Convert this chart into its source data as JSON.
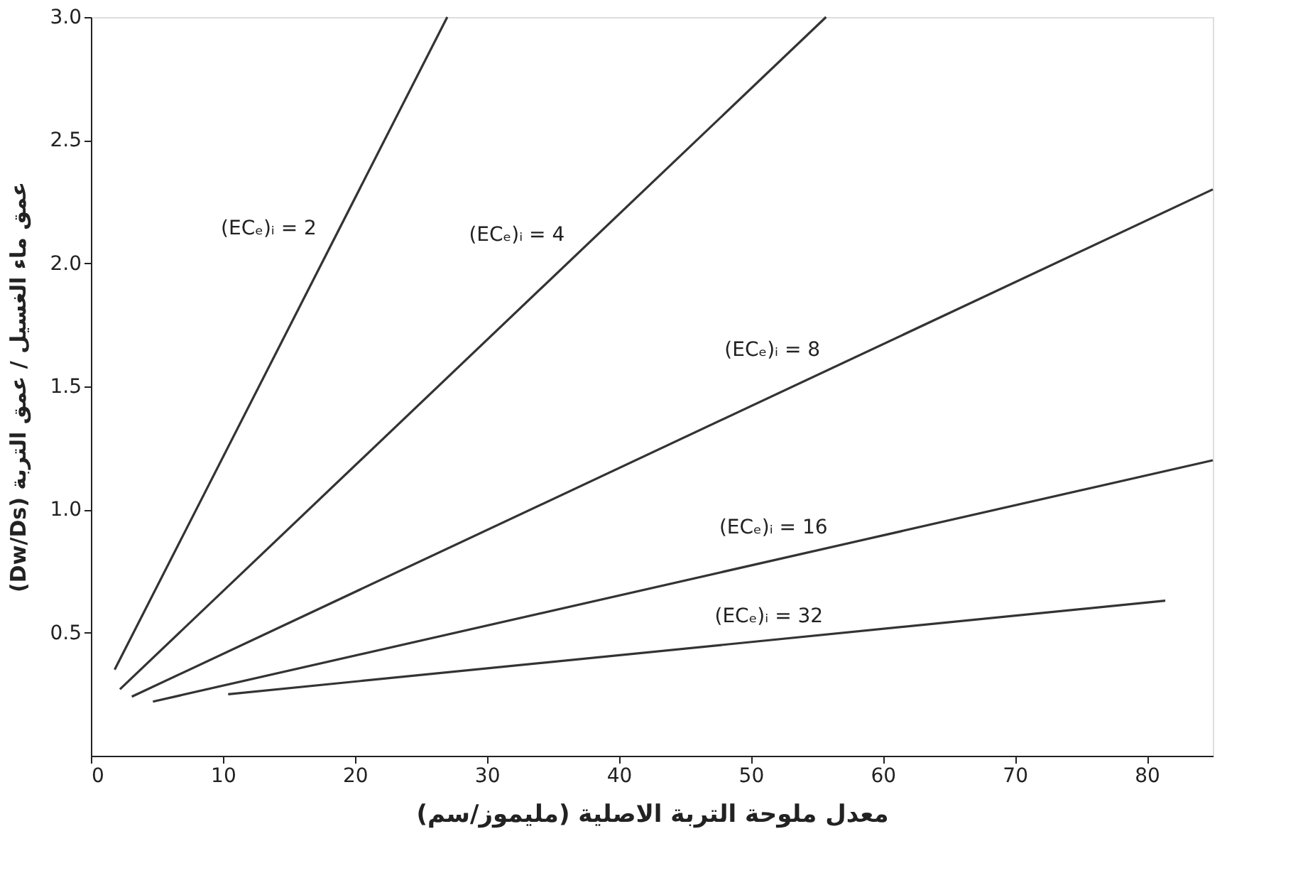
{
  "chart_data": {
    "type": "line",
    "xlabel": "معدل ملوحة التربة الاصلية (مليموز/سم)",
    "ylabel": "(Dw/Ds) عمق ماء الغسيل / عمق التربة",
    "xlim": [
      0,
      85
    ],
    "xticks": [
      0,
      10,
      20,
      30,
      40,
      50,
      60,
      70,
      80
    ],
    "ylim": [
      0,
      3.0
    ],
    "yticks": [
      0.5,
      {
        "value": 1.0,
        "label": "1.0"
      },
      1.5,
      {
        "value": 2.0,
        "label": "2.0"
      },
      2.5,
      {
        "value": 3.0,
        "label": "3.0"
      }
    ],
    "grid": false,
    "marker": "none",
    "line_style": "solid",
    "series": [
      {
        "name": "(ECₑ)ᵢ = 2",
        "color": "#333333",
        "x": [
          1.8,
          27
        ],
        "values": [
          0.35,
          3.0
        ]
      },
      {
        "name": "(ECₑ)ᵢ = 4",
        "color": "#333333",
        "x": [
          2.2,
          55.7
        ],
        "values": [
          0.27,
          3.0
        ]
      },
      {
        "name": "(ECₑ)ᵢ = 8",
        "color": "#333333",
        "x": [
          3.1,
          85
        ],
        "values": [
          0.24,
          2.3
        ]
      },
      {
        "name": "(ECₑ)ᵢ = 16",
        "color": "#333333",
        "x": [
          4.7,
          85
        ],
        "values": [
          0.22,
          1.2
        ]
      },
      {
        "name": "(ECₑ)ᵢ = 32",
        "color": "#333333",
        "x": [
          10.4,
          81.4
        ],
        "values": [
          0.25,
          0.63
        ]
      }
    ]
  }
}
